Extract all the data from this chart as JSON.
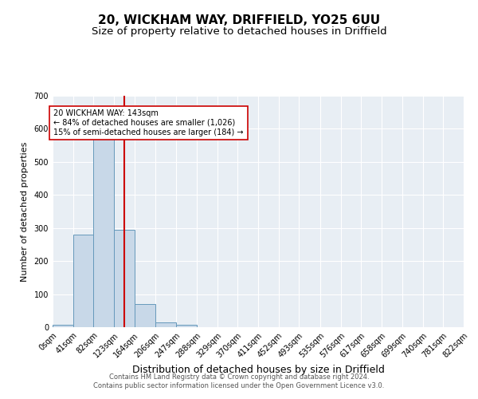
{
  "title": "20, WICKHAM WAY, DRIFFIELD, YO25 6UU",
  "subtitle": "Size of property relative to detached houses in Driffield",
  "xlabel": "Distribution of detached houses by size in Driffield",
  "ylabel": "Number of detached properties",
  "bin_edges": [
    0,
    41,
    82,
    123,
    164,
    206,
    247,
    288,
    329,
    370,
    411,
    452,
    493,
    535,
    576,
    617,
    658,
    699,
    740,
    781,
    822
  ],
  "bin_labels": [
    "0sqm",
    "41sqm",
    "82sqm",
    "123sqm",
    "164sqm",
    "206sqm",
    "247sqm",
    "288sqm",
    "329sqm",
    "370sqm",
    "411sqm",
    "452sqm",
    "493sqm",
    "535sqm",
    "576sqm",
    "617sqm",
    "658sqm",
    "699sqm",
    "740sqm",
    "781sqm",
    "822sqm"
  ],
  "bar_heights": [
    7,
    280,
    570,
    295,
    70,
    14,
    8,
    0,
    0,
    0,
    0,
    0,
    0,
    0,
    0,
    0,
    0,
    0,
    0,
    0
  ],
  "bar_color": "#c8d8e8",
  "bar_edgecolor": "#6699bb",
  "vline_x": 143,
  "vline_color": "#cc0000",
  "annotation_text": "20 WICKHAM WAY: 143sqm\n← 84% of detached houses are smaller (1,026)\n15% of semi-detached houses are larger (184) →",
  "annotation_box_color": "white",
  "annotation_box_edgecolor": "#cc0000",
  "ylim": [
    0,
    700
  ],
  "yticks": [
    0,
    100,
    200,
    300,
    400,
    500,
    600,
    700
  ],
  "background_color": "#e8eef4",
  "grid_color": "white",
  "footnote": "Contains HM Land Registry data © Crown copyright and database right 2024.\nContains public sector information licensed under the Open Government Licence v3.0.",
  "title_fontsize": 11,
  "subtitle_fontsize": 9.5,
  "xlabel_fontsize": 9,
  "ylabel_fontsize": 8,
  "tick_fontsize": 7,
  "footnote_fontsize": 6
}
